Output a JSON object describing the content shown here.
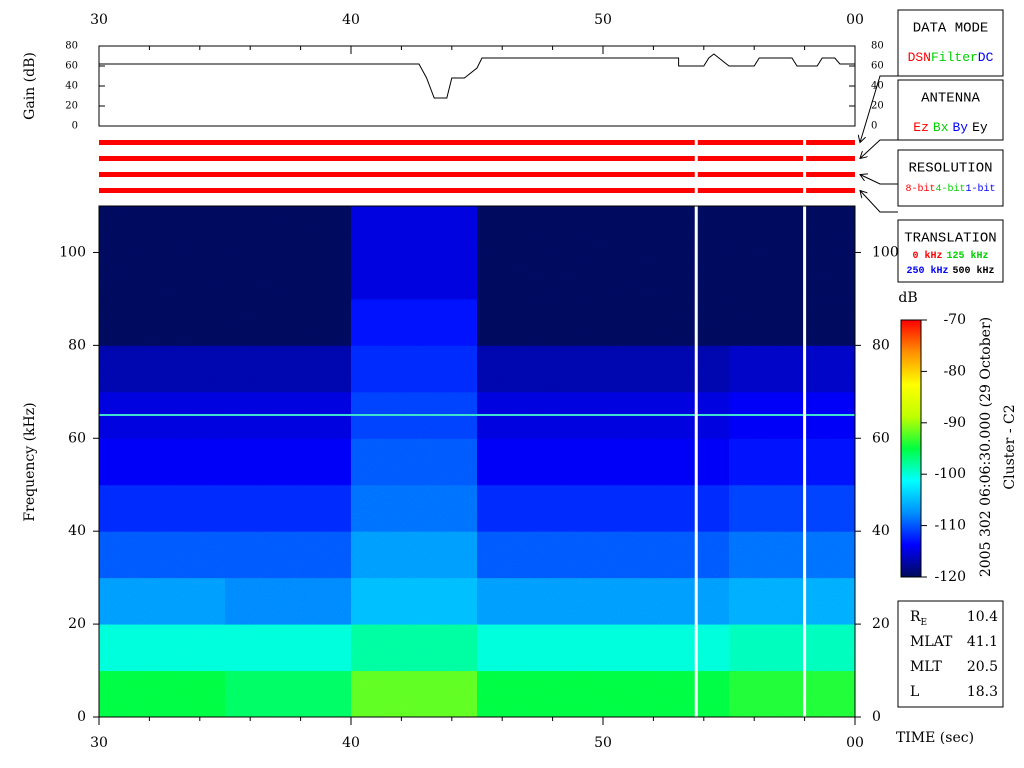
{
  "chart_data": [
    {
      "type": "line",
      "ylabel": "Gain (dB)",
      "color": "#000000",
      "xlim": [
        30,
        60
      ],
      "xticks": [
        30,
        40,
        50,
        {
          "value": 60,
          "label": "00"
        }
      ],
      "xminorticks": [
        32,
        34,
        36,
        38,
        42,
        44,
        46,
        48,
        52,
        54,
        56,
        58
      ],
      "ylim": [
        0,
        80
      ],
      "yticks": [
        0,
        20,
        40,
        60,
        80
      ],
      "x": [
        30,
        42.7,
        43.0,
        43.3,
        43.8,
        44.0,
        44.5,
        45.0,
        45.2,
        53.0,
        53.0,
        54.0,
        54.2,
        54.4,
        54.6,
        55.0,
        56.0,
        56.2,
        57.5,
        57.7,
        58.5,
        58.7,
        59.2,
        59.4,
        60
      ],
      "values": [
        62,
        62,
        48,
        28,
        28,
        48,
        48,
        58,
        68,
        68,
        60,
        60,
        68,
        72,
        68,
        60,
        60,
        68,
        68,
        60,
        60,
        68,
        68,
        62,
        62
      ]
    },
    {
      "type": "heatmap",
      "ylabel": "Frequency (kHz)",
      "xlabel": "TIME (sec)",
      "xlim": [
        30,
        60
      ],
      "xticks": [
        30,
        40,
        50,
        {
          "value": 60,
          "label": "00"
        }
      ],
      "xminorticks": [
        32,
        34,
        36,
        38,
        42,
        44,
        46,
        48,
        52,
        54,
        56,
        58
      ],
      "ylim": [
        0,
        110
      ],
      "yticks": [
        0,
        20,
        40,
        60,
        80,
        100
      ],
      "xbins": [
        30,
        35,
        40,
        45,
        50,
        55,
        60
      ],
      "ybins": [
        0,
        10,
        20,
        30,
        40,
        50,
        60,
        70,
        80,
        90,
        100,
        110
      ],
      "values": [
        [
          -95,
          -96,
          -92,
          -95,
          -95,
          -94
        ],
        [
          -100,
          -100,
          -98,
          -100,
          -100,
          -99
        ],
        [
          -107,
          -108,
          -105,
          -107,
          -107,
          -106
        ],
        [
          -110,
          -110,
          -107,
          -110,
          -110,
          -109
        ],
        [
          -112,
          -112,
          -109,
          -112,
          -112,
          -111
        ],
        [
          -114,
          -114,
          -110,
          -114,
          -114,
          -113
        ],
        [
          -115,
          -115,
          -111,
          -115,
          -115,
          -114
        ],
        [
          -117,
          -117,
          -112,
          -117,
          -117,
          -116
        ],
        [
          -121,
          -121,
          -113,
          -121,
          -121,
          -120
        ],
        [
          -125,
          -125,
          -115,
          -125,
          -125,
          -125
        ],
        [
          -125,
          -125,
          -115,
          -125,
          -125,
          -125
        ]
      ],
      "hline": {
        "value": 65,
        "color": "#40e0d0"
      },
      "gaps": [
        53.7,
        58.0
      ],
      "gap_color": "#ffffff"
    },
    {
      "type": "colorbar",
      "title": "dB",
      "ylim": [
        -120,
        -70
      ],
      "yticks": [
        -120,
        -110,
        -100,
        -90,
        -80,
        -70
      ],
      "colormap": [
        "#000a5a",
        "#0000ff",
        "#0090ff",
        "#00ffff",
        "#00ff40",
        "#c0ff00",
        "#ffff00",
        "#ff9000",
        "#ff0000"
      ]
    }
  ],
  "timestamp": "2005 302 06:06:30.000 (29 October)",
  "spacecraft": "Cluster - C2",
  "mode_bar_color": "#ff0000",
  "panels": [
    {
      "title": "DATA MODE",
      "rows": [
        [
          {
            "text": "DSN",
            "color": "#ff0000"
          },
          {
            "text": "Filter",
            "color": "#00d000"
          },
          {
            "text": "DC",
            "color": "#0000ff"
          }
        ]
      ]
    },
    {
      "title": "ANTENNA",
      "rows": [
        [
          {
            "text": "Ez",
            "color": "#ff0000"
          },
          {
            "text": "Bx",
            "color": "#00d000"
          },
          {
            "text": "By",
            "color": "#0000ff"
          },
          {
            "text": "Ey",
            "color": "#000000"
          }
        ]
      ]
    },
    {
      "title": "RESOLUTION",
      "rows": [
        [
          {
            "text": "8-bit",
            "color": "#ff0000"
          },
          {
            "text": "4-bit",
            "color": "#00d000"
          },
          {
            "text": "1-bit",
            "color": "#0000ff"
          }
        ]
      ]
    },
    {
      "title": "TRANSLATION",
      "rows": [
        [
          {
            "text": "0 kHz",
            "color": "#ff0000"
          },
          {
            "text": "125 kHz",
            "color": "#00d000"
          }
        ],
        [
          {
            "text": "250 kHz",
            "color": "#0000ff"
          },
          {
            "text": "500 kHz",
            "color": "#000000"
          }
        ]
      ]
    }
  ],
  "info": [
    {
      "label": "R",
      "sub": "E",
      "value": 10.4
    },
    {
      "label": "MLAT",
      "value": 41.1
    },
    {
      "label": "MLT",
      "value": 20.5
    },
    {
      "label": "L",
      "value": 18.3
    }
  ]
}
